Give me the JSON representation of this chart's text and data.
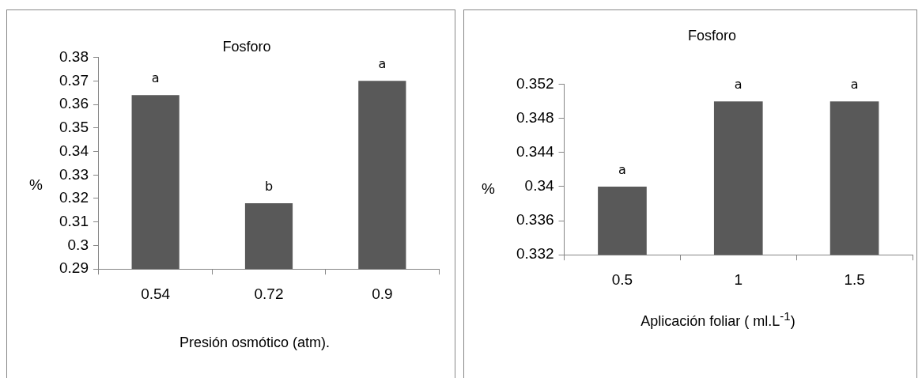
{
  "chart_data": [
    {
      "type": "bar",
      "title": "Fosforo",
      "xlabel": "Presión osmótico (atm).",
      "ylabel": "%",
      "categories": [
        "0.54",
        "0.72",
        "0.9"
      ],
      "values": [
        0.364,
        0.318,
        0.37
      ],
      "color": "#595959",
      "ylim": [
        0.29,
        0.38
      ],
      "yticks": [
        0.29,
        0.3,
        0.31,
        0.32,
        0.33,
        0.34,
        0.35,
        0.36,
        0.37,
        0.38
      ],
      "grid": false,
      "legend": false,
      "annotations": [
        {
          "text": "a",
          "x": "0.54",
          "y": 0.364
        },
        {
          "text": "b",
          "x": "0.72",
          "y": 0.318
        },
        {
          "text": "a",
          "x": "0.9",
          "y": 0.37
        }
      ]
    },
    {
      "type": "bar",
      "title": "Fosforo",
      "xlabel": "Aplicación foliar (  ml.L$^{-1}$)",
      "ylabel": "%",
      "categories": [
        "0.5",
        "1",
        "1.5"
      ],
      "values": [
        0.34,
        0.35,
        0.35
      ],
      "color": "#595959",
      "ylim": [
        0.332,
        0.352
      ],
      "yticks": [
        0.332,
        0.336,
        0.34,
        0.344,
        0.348,
        0.352
      ],
      "grid": false,
      "legend": false,
      "annotations": [
        {
          "text": "a",
          "x": "0.5",
          "y": 0.34
        },
        {
          "text": "a",
          "x": "1",
          "y": 0.35
        },
        {
          "text": "a",
          "x": "1.5",
          "y": 0.35
        }
      ]
    }
  ]
}
